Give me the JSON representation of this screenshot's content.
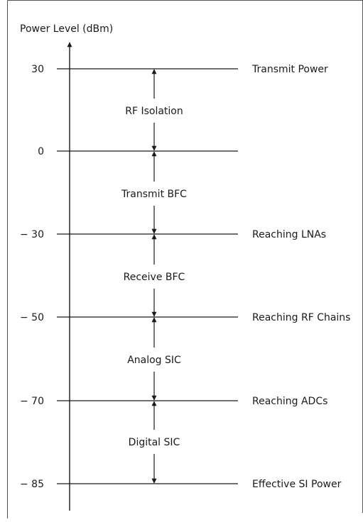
{
  "axis": {
    "label": "Power Level (dBm)"
  },
  "levels": [
    {
      "value": "30",
      "label": "Transmit Power"
    },
    {
      "value": "0",
      "label": ""
    },
    {
      "value": "− 30",
      "label": "Reaching LNAs"
    },
    {
      "value": "− 50",
      "label": "Reaching RF Chains"
    },
    {
      "value": "− 70",
      "label": "Reaching ADCs"
    },
    {
      "value": "− 85",
      "label": "Effective SI Power"
    }
  ],
  "stages": [
    {
      "label": "RF Isolation"
    },
    {
      "label": "Transmit BFC"
    },
    {
      "label": "Receive BFC"
    },
    {
      "label": "Analog SIC"
    },
    {
      "label": "Digital SIC"
    }
  ],
  "colors": {
    "line": "#1a1a1a",
    "frame": "#555555"
  }
}
